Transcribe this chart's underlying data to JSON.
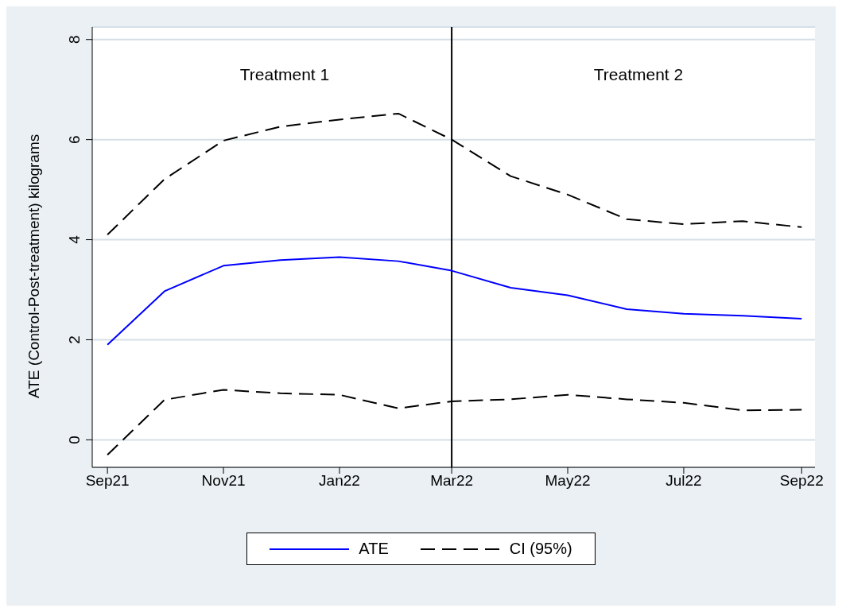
{
  "chart_data": {
    "type": "line",
    "ylabel": "ATE (Control-Post-treatment) kilograms",
    "x": [
      "2021-09",
      "2021-10",
      "2021-11",
      "2021-12",
      "2022-01",
      "2022-02",
      "2022-03",
      "2022-04",
      "2022-05",
      "2022-06",
      "2022-07",
      "2022-08",
      "2022-09"
    ],
    "series": [
      {
        "name": "ATE",
        "color": "#0000ff",
        "line_style": "solid",
        "values": [
          1.9,
          2.97,
          3.48,
          3.59,
          3.65,
          3.57,
          3.38,
          3.04,
          2.89,
          2.61,
          2.52,
          2.48,
          2.42
        ]
      },
      {
        "name": "CI (95%)",
        "color": "#000000",
        "line_style": "dashed",
        "values": [
          4.1,
          5.21,
          5.98,
          6.26,
          6.4,
          6.52,
          6.0,
          5.27,
          4.9,
          4.41,
          4.31,
          4.37,
          4.25
        ]
      },
      {
        "color": "#000000",
        "line_style": "dashed",
        "values": [
          -0.3,
          0.8,
          1.0,
          0.93,
          0.9,
          0.63,
          0.77,
          0.81,
          0.9,
          0.81,
          0.74,
          0.59,
          0.6
        ]
      }
    ],
    "xlim": [
      "2021-08-24",
      "2022-09-08"
    ],
    "xticks": [
      {
        "value": "2021-09",
        "label": "Sep21"
      },
      {
        "value": "2021-11",
        "label": "Nov21"
      },
      {
        "value": "2022-01",
        "label": "Jan22"
      },
      {
        "value": "2022-03",
        "label": "Mar22"
      },
      {
        "value": "2022-05",
        "label": "May22"
      },
      {
        "value": "2022-07",
        "label": "Jul22"
      },
      {
        "value": "2022-09",
        "label": "Sep22"
      }
    ],
    "ylim": [
      -0.55,
      8.25
    ],
    "yticks": [
      0,
      2,
      4,
      6,
      8
    ],
    "ref_lines": [
      {
        "axis": "x",
        "value": "2022-03",
        "color": "#000000"
      }
    ],
    "annotations": [
      "Treatment 1",
      "Treatment 2"
    ],
    "grid": "y",
    "legend": "bottom",
    "marker": "none"
  }
}
